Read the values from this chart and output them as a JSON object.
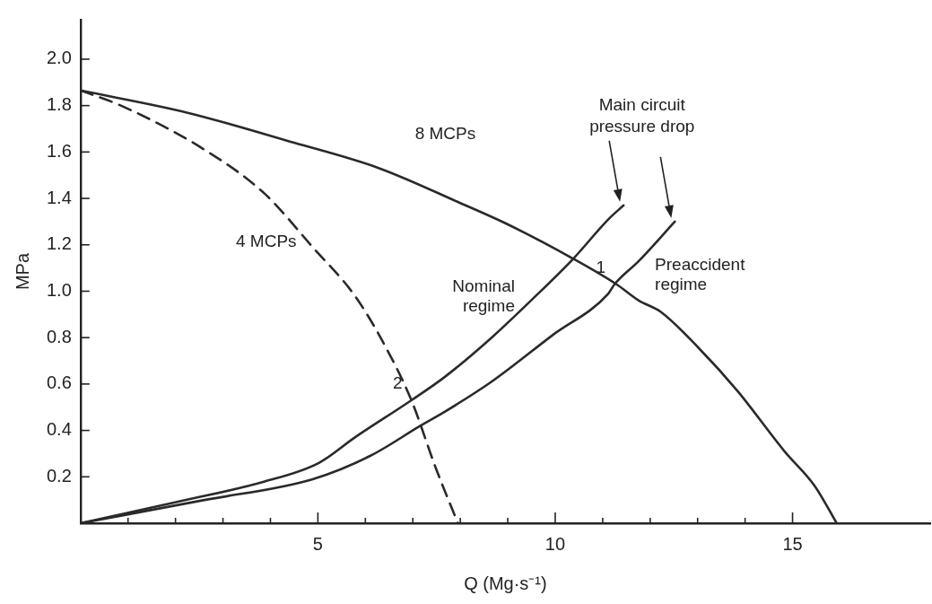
{
  "chart_data": {
    "type": "line",
    "xlabel": "Q (Mg·s⁻¹)",
    "ylabel": "MPa",
    "marker": "none",
    "xlim": [
      0,
      17.9
    ],
    "ylim": [
      0,
      2.17
    ],
    "xticks": [
      {
        "value": 1,
        "label": null
      },
      {
        "value": 2,
        "label": null
      },
      {
        "value": 3,
        "label": null
      },
      {
        "value": 4,
        "label": null
      },
      5,
      {
        "value": 6,
        "label": null
      },
      {
        "value": 7,
        "label": null
      },
      {
        "value": 8,
        "label": null
      },
      {
        "value": 9,
        "label": null
      },
      10,
      {
        "value": 11,
        "label": null
      },
      {
        "value": 12,
        "label": null
      },
      {
        "value": 13,
        "label": null
      },
      {
        "value": 14,
        "label": null
      },
      15
    ],
    "yticks": [
      {
        "value": 0.2,
        "label": "0.2"
      },
      {
        "value": 0.4,
        "label": "0.4"
      },
      {
        "value": 0.6,
        "label": "0.6"
      },
      {
        "value": 0.8,
        "label": "0.8"
      },
      {
        "value": 1.0,
        "label": "1.0"
      },
      {
        "value": 1.2,
        "label": "1.2"
      },
      {
        "value": 1.4,
        "label": "1.4"
      },
      {
        "value": 1.6,
        "label": "1.6"
      },
      {
        "value": 1.8,
        "label": "1.8"
      },
      {
        "value": 2.0,
        "label": "2.0"
      }
    ],
    "series": [
      {
        "name": "8 MCPs",
        "color": "#2a2a2a",
        "line_style": "solid",
        "x": [
          0,
          2.24,
          4.5,
          6.29,
          8.0,
          8.98,
          10.38,
          11.29,
          11.76,
          12.23,
          13.0,
          13.84,
          14.83,
          15.47,
          15.93
        ],
        "values": [
          1.865,
          1.77,
          1.64,
          1.53,
          1.38,
          1.29,
          1.14,
          1.03,
          0.96,
          0.91,
          0.76,
          0.57,
          0.31,
          0.16,
          0
        ]
      },
      {
        "name": "4 MCPs",
        "color": "#2a2a2a",
        "line_style": "dashed",
        "x": [
          0,
          0.85,
          2.61,
          3.88,
          4.89,
          5.78,
          6.4,
          6.97,
          7.48,
          7.95
        ],
        "values": [
          1.865,
          1.8,
          1.61,
          1.42,
          1.19,
          0.98,
          0.77,
          0.53,
          0.24,
          0
        ]
      },
      {
        "name": "Nominal regime",
        "color": "#2a2a2a",
        "line_style": "solid",
        "x": [
          0,
          1.99,
          3.88,
          5.02,
          5.78,
          6.97,
          7.67,
          8.66,
          9.49,
          10.38,
          11.12,
          11.44
        ],
        "values": [
          0,
          0.09,
          0.18,
          0.26,
          0.37,
          0.53,
          0.63,
          0.8,
          0.96,
          1.14,
          1.31,
          1.37
        ]
      },
      {
        "name": "Preaccident regime",
        "color": "#2a2a2a",
        "line_style": "solid",
        "x": [
          0,
          2.61,
          4.89,
          6.1,
          7.16,
          7.67,
          8.66,
          9.94,
          11.12,
          11.25,
          11.76,
          12.52
        ],
        "values": [
          0,
          0.1,
          0.19,
          0.29,
          0.42,
          0.48,
          0.61,
          0.81,
          0.99,
          1.03,
          1.13,
          1.3
        ]
      }
    ],
    "annotations": [
      "Main circuit pressure drop",
      {
        "text": "1",
        "x": 11.25,
        "y": 1.03
      },
      {
        "text": "2",
        "x": 6.97,
        "y": 0.53
      }
    ]
  }
}
